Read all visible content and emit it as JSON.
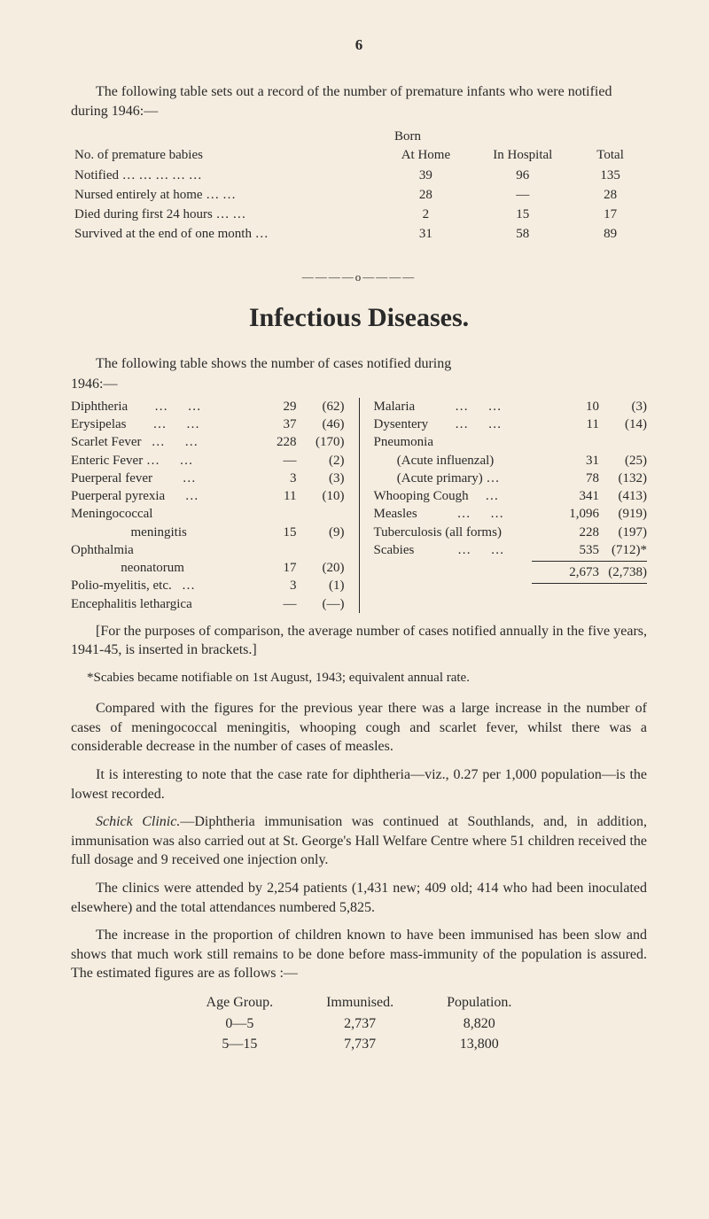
{
  "page_number": "6",
  "intro": "The following table sets out a record of the number of premature infants who were notified during 1946:—",
  "premature_table": {
    "born_label": "Born",
    "header_label": "No. of premature babies",
    "col_home": "At Home",
    "col_hospital": "In Hospital",
    "col_total": "Total",
    "rows": [
      {
        "label": "Notified    …    …    …    …    …",
        "home": "39",
        "hospital": "96",
        "total": "135"
      },
      {
        "label": "Nursed entirely at home    …    …",
        "home": "28",
        "hospital": "—",
        "total": "28"
      },
      {
        "label": "Died during first 24 hours    …    …",
        "home": "2",
        "hospital": "15",
        "total": "17"
      },
      {
        "label": "Survived at the end of one month    …",
        "home": "31",
        "hospital": "58",
        "total": "89"
      }
    ]
  },
  "divider": "————o————",
  "section_title": "Infectious Diseases.",
  "diseases_lead": "The following table shows the number of cases notified during",
  "diseases_year": "1946:—",
  "diseases_left": [
    {
      "name": "Diphtheria        …      …",
      "v1": "29",
      "v2": "(62)"
    },
    {
      "name": "Erysipelas        …      …",
      "v1": "37",
      "v2": "(46)"
    },
    {
      "name": "Scarlet Fever   …      …",
      "v1": "228",
      "v2": "(170)"
    },
    {
      "name": "Enteric Fever …      …",
      "v1": "—",
      "v2": "(2)"
    },
    {
      "name": "Puerperal fever         …",
      "v1": "3",
      "v2": "(3)"
    },
    {
      "name": "Puerperal pyrexia      …",
      "v1": "11",
      "v2": "(10)"
    },
    {
      "name": "Meningococcal",
      "v1": "",
      "v2": ""
    },
    {
      "name": "                  meningitis",
      "v1": "15",
      "v2": "(9)"
    },
    {
      "name": "Ophthalmia",
      "v1": "",
      "v2": ""
    },
    {
      "name": "               neonatorum",
      "v1": "17",
      "v2": "(20)"
    },
    {
      "name": "Polio-myelitis, etc.   …",
      "v1": "3",
      "v2": "(1)"
    },
    {
      "name": "Encephalitis lethargica",
      "v1": "—",
      "v2": "(—)"
    }
  ],
  "diseases_right": [
    {
      "name": "Malaria            …      …",
      "v1": "10",
      "v2": "(3)"
    },
    {
      "name": "Dysentery        …      …",
      "v1": "11",
      "v2": "(14)"
    },
    {
      "name": "Pneumonia",
      "v1": "",
      "v2": ""
    },
    {
      "name": "       (Acute influenzal)",
      "v1": "31",
      "v2": "(25)"
    },
    {
      "name": "       (Acute primary) …",
      "v1": "78",
      "v2": "(132)"
    },
    {
      "name": "Whooping Cough     …",
      "v1": "341",
      "v2": "(413)"
    },
    {
      "name": "Measles            …      …",
      "v1": "1,096",
      "v2": "(919)"
    },
    {
      "name": "Tuberculosis (all forms)",
      "v1": "228",
      "v2": "(197)"
    },
    {
      "name": "Scabies             …      …",
      "v1": "535",
      "v2": "(712)*"
    }
  ],
  "diseases_total": {
    "v1": "2,673",
    "v2": "(2,738)"
  },
  "bracket_note": "[For the purposes of comparison, the average number of cases notified annually in the five years, 1941-45, is inserted in brackets.]",
  "scabies_note": "*Scabies became notifiable on 1st August, 1943; equivalent annual rate.",
  "para1": "Compared with the figures for the previous year there was a large increase in the number of cases of meningococcal meningitis, whooping cough and scarlet fever, whilst there was a considerable decrease in the number of cases of measles.",
  "para2": "It is interesting to note that the case rate for diphtheria—viz., 0.27 per 1,000 population—is the lowest recorded.",
  "para3_lead": "Schick Clinic.",
  "para3_rest": "—Diphtheria immunisation was continued at Southlands, and, in addition, immunisation was also carried out at St. George's Hall Welfare Centre where 51 children received the full dosage and 9 received one injection only.",
  "para4": "The clinics were attended by 2,254 patients (1,431 new; 409 old; 414 who had been inoculated elsewhere) and the total attendances numbered 5,825.",
  "para5": "The increase in the proportion of children known to have been immunised has been slow and shows that much work still remains to be done before mass-immunity of the population is assured. The estimated figures are as follows :—",
  "age_table": {
    "headers": [
      "Age Group.",
      "Immunised.",
      "Population."
    ],
    "rows": [
      [
        "0—5",
        "2,737",
        "8,820"
      ],
      [
        "5—15",
        "7,737",
        "13,800"
      ]
    ]
  },
  "colors": {
    "background": "#f5ede0",
    "text": "#2a2a2a"
  }
}
